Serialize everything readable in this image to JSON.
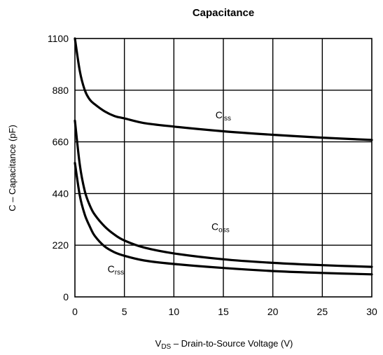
{
  "chart_data": {
    "type": "line",
    "title": "Capacitance",
    "xlabel": {
      "main": "V",
      "sub": "DS",
      "rest": " – Drain-to-Source Voltage (V)"
    },
    "ylabel": "C – Capacitance (pF)",
    "xlim": [
      0,
      30
    ],
    "ylim": [
      0,
      1100
    ],
    "xticks": [
      0,
      5,
      10,
      15,
      20,
      25,
      30
    ],
    "yticks": [
      0,
      220,
      440,
      660,
      880,
      1100
    ],
    "grid": true,
    "series": [
      {
        "name": "Ciss",
        "label_main": "C",
        "label_sub": "iss",
        "x": [
          0,
          0.5,
          1,
          1.5,
          2,
          3,
          4,
          5,
          7,
          10,
          15,
          20,
          25,
          30
        ],
        "y": [
          1100,
          960,
          880,
          840,
          820,
          790,
          770,
          760,
          740,
          725,
          705,
          690,
          678,
          668
        ]
      },
      {
        "name": "Coss",
        "label_main": "C",
        "label_sub": "oss",
        "x": [
          0,
          0.5,
          1,
          1.5,
          2,
          3,
          4,
          5,
          7,
          10,
          15,
          20,
          25,
          30
        ],
        "y": [
          750,
          560,
          450,
          390,
          350,
          300,
          265,
          240,
          210,
          185,
          160,
          145,
          135,
          128
        ]
      },
      {
        "name": "Crss",
        "label_main": "C",
        "label_sub": "rss",
        "x": [
          0,
          0.5,
          1,
          1.5,
          2,
          3,
          4,
          5,
          7,
          10,
          15,
          20,
          25,
          30
        ],
        "y": [
          570,
          430,
          350,
          300,
          260,
          215,
          190,
          175,
          155,
          140,
          123,
          110,
          102,
          96
        ]
      }
    ]
  }
}
